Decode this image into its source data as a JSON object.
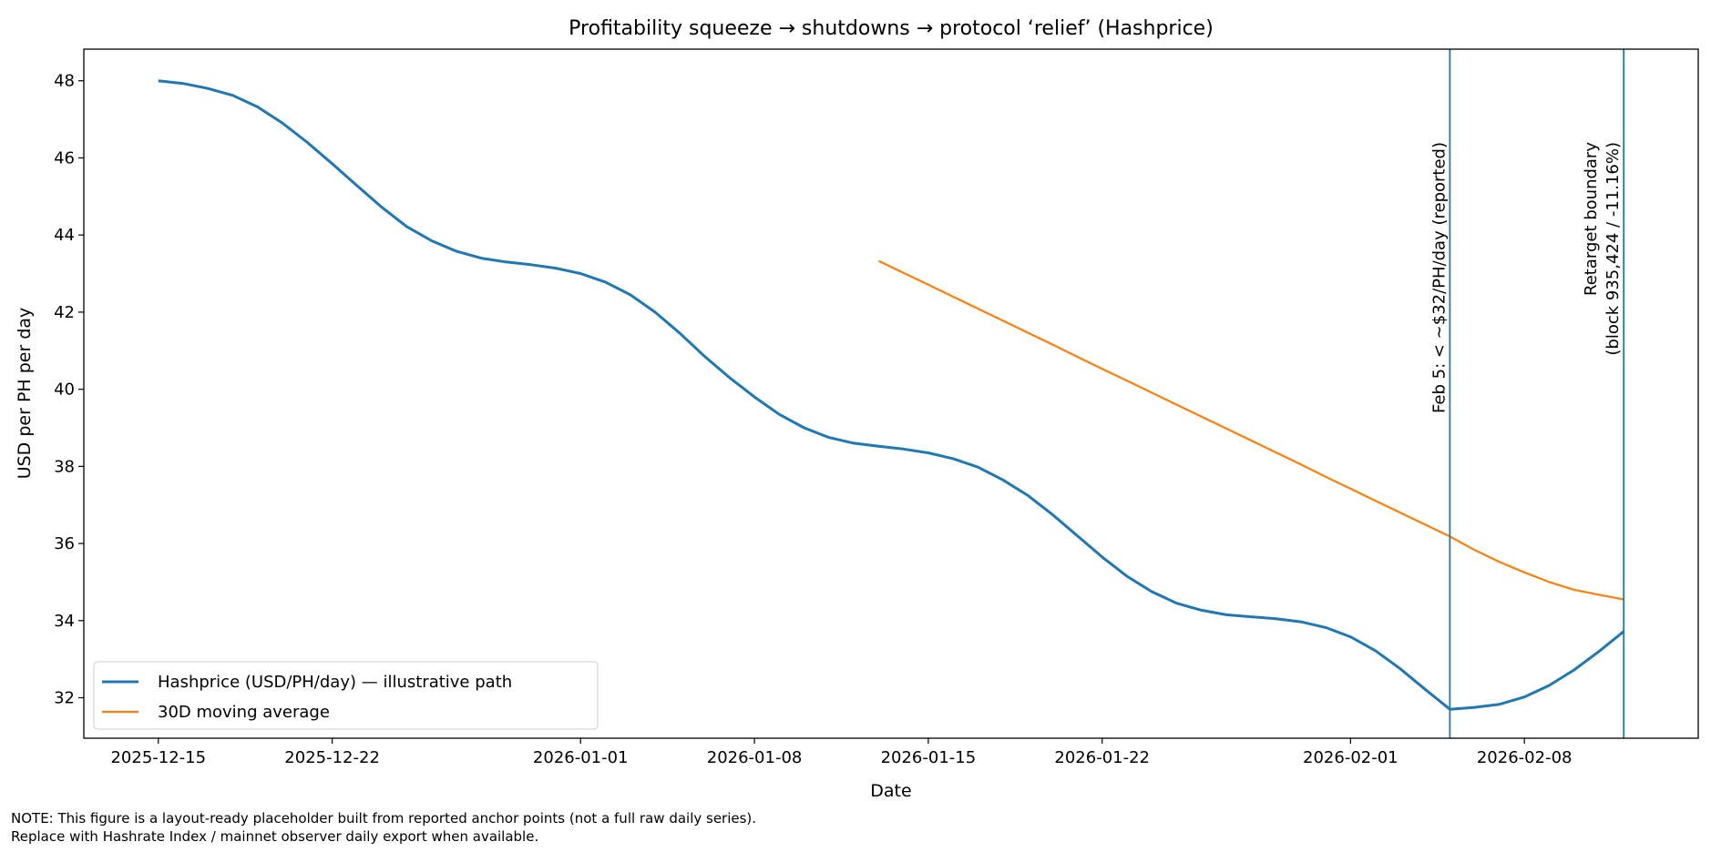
{
  "chart_data": {
    "type": "line",
    "title": "Profitability squeeze → shutdowns → protocol ‘relief’ (Hashprice)",
    "xlabel": "Date",
    "ylabel": "USD per PH per day",
    "xlim": [
      "2025-12-12",
      "2026-02-15"
    ],
    "ylim": [
      30.95,
      48.82
    ],
    "x_ticks": [
      "2025-12-15",
      "2025-12-22",
      "2026-01-01",
      "2026-01-08",
      "2026-01-15",
      "2026-01-22",
      "2026-02-01",
      "2026-02-08"
    ],
    "y_ticks": [
      32,
      34,
      36,
      38,
      40,
      42,
      44,
      46,
      48
    ],
    "grid": false,
    "legend_placement": "lower-left",
    "series": [
      {
        "name": "Hashprice (USD/PH/day) — illustrative path",
        "color": "#1f77b4",
        "start_date": "2025-12-15",
        "values": [
          48.0,
          47.93,
          47.8,
          47.62,
          47.32,
          46.9,
          46.4,
          45.85,
          45.28,
          44.72,
          44.22,
          43.85,
          43.58,
          43.4,
          43.3,
          43.23,
          43.14,
          43.0,
          42.78,
          42.45,
          42.0,
          41.45,
          40.85,
          40.3,
          39.8,
          39.35,
          39.0,
          38.75,
          38.6,
          38.52,
          38.45,
          38.35,
          38.2,
          37.98,
          37.65,
          37.25,
          36.75,
          36.2,
          35.65,
          35.15,
          34.75,
          34.45,
          34.27,
          34.15,
          34.1,
          34.05,
          33.97,
          33.82,
          33.58,
          33.22,
          32.75,
          32.22,
          31.7,
          31.75,
          31.83,
          32.02,
          32.32,
          32.72,
          33.2,
          33.72
        ]
      },
      {
        "name": "30D moving average",
        "color": "#ff7f0e",
        "start_date": "2026-01-13",
        "values": [
          43.33,
          43.02,
          42.71,
          42.4,
          42.09,
          41.78,
          41.47,
          41.16,
          40.84,
          40.53,
          40.22,
          39.91,
          39.6,
          39.29,
          38.98,
          38.67,
          38.36,
          38.05,
          37.73,
          37.42,
          37.11,
          36.8,
          36.49,
          36.18,
          35.83,
          35.52,
          35.25,
          35.0,
          34.8,
          34.67,
          34.55
        ]
      }
    ],
    "vlines": [
      {
        "date": "2026-02-05",
        "color": "#1f77b4",
        "label_lines": [
          "Feb 5: < ~$32/PH/day (reported)"
        ]
      },
      {
        "date": "2026-02-12",
        "color": "#1f77b4",
        "label_lines": [
          "Retarget boundary",
          "(block 935,424 / -11.16%)"
        ]
      }
    ]
  },
  "note": {
    "line1": "NOTE: This figure is a layout-ready placeholder built from reported anchor points (not a full raw daily series).",
    "line2": "Replace with Hashrate Index / mainnet observer daily export when available."
  }
}
